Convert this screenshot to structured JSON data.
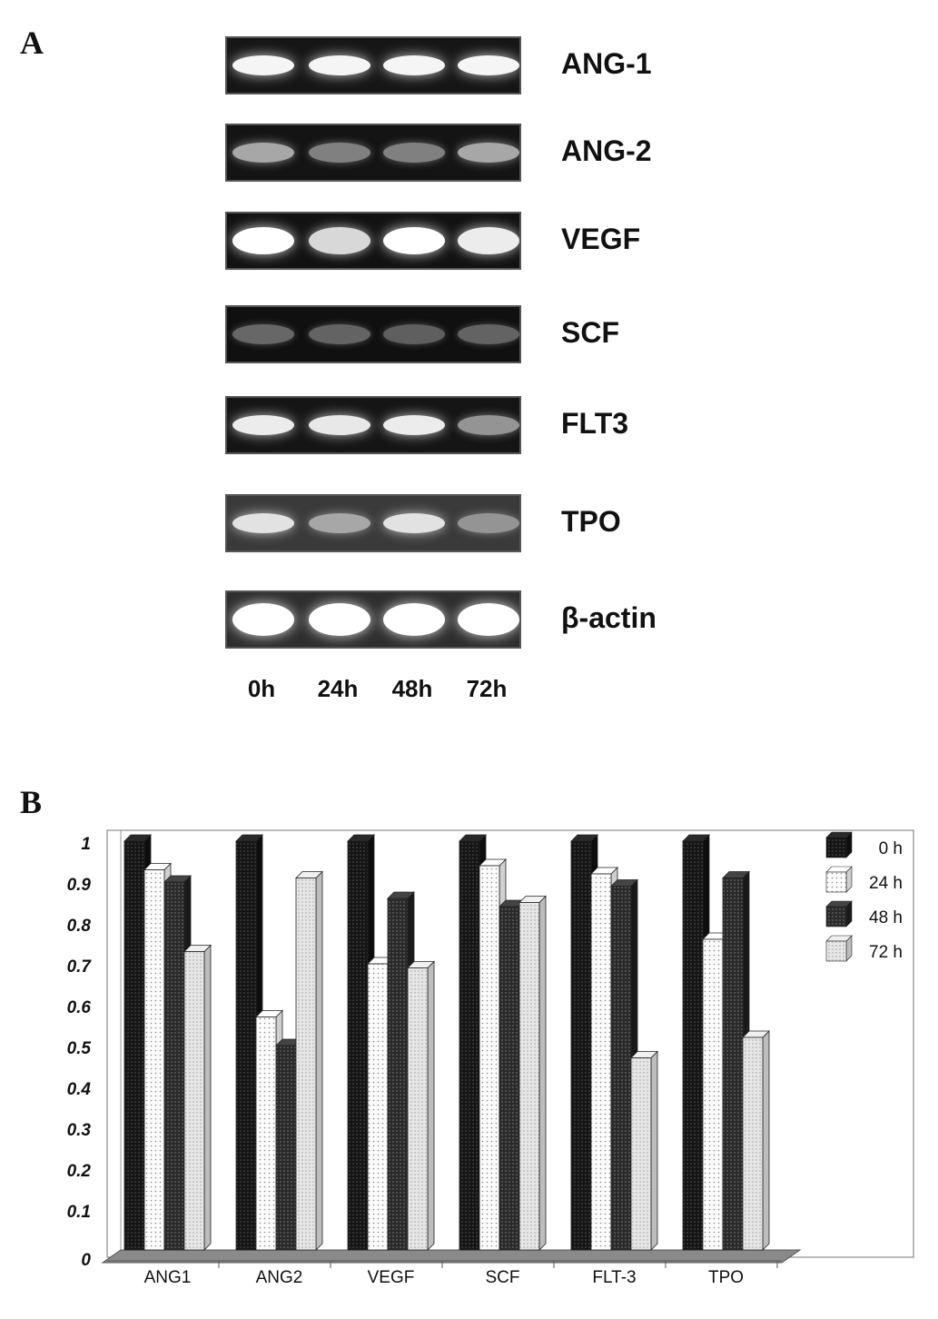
{
  "panel_a": {
    "letter": "A",
    "genes": [
      "ANG-1",
      "ANG-2",
      "VEGF",
      "SCF",
      "FLT3",
      "TPO",
      "β-actin"
    ],
    "lanes": [
      "0h",
      "24h",
      "48h",
      "72h"
    ]
  },
  "panel_b": {
    "letter": "B"
  },
  "colors": {
    "s0": "#1a1a1a",
    "s24": "#f4f4f4",
    "s48": "#333333",
    "s72": "#e0e0e0",
    "floor": "#8a8a8a"
  },
  "chart_data": {
    "type": "bar",
    "categories": [
      "ANG1",
      "ANG2",
      "VEGF",
      "SCF",
      "FLT-3",
      "TPO"
    ],
    "series": [
      {
        "name": "0 h",
        "values": [
          1.0,
          1.0,
          1.0,
          1.0,
          1.0,
          1.0
        ]
      },
      {
        "name": "24 h",
        "values": [
          0.93,
          0.57,
          0.7,
          0.94,
          0.92,
          0.76
        ]
      },
      {
        "name": "48 h",
        "values": [
          0.9,
          0.5,
          0.86,
          0.84,
          0.89,
          0.91
        ]
      },
      {
        "name": "72 h",
        "values": [
          0.73,
          0.91,
          0.69,
          0.85,
          0.47,
          0.52
        ]
      }
    ],
    "y_ticks": [
      "0",
      "0.1",
      "0.2",
      "0.3",
      "0.4",
      "0.5",
      "0.6",
      "0.7",
      "0.8",
      "0.9",
      "1"
    ],
    "ylim": [
      0,
      1
    ],
    "legend_position": "top-right",
    "grid": false
  }
}
